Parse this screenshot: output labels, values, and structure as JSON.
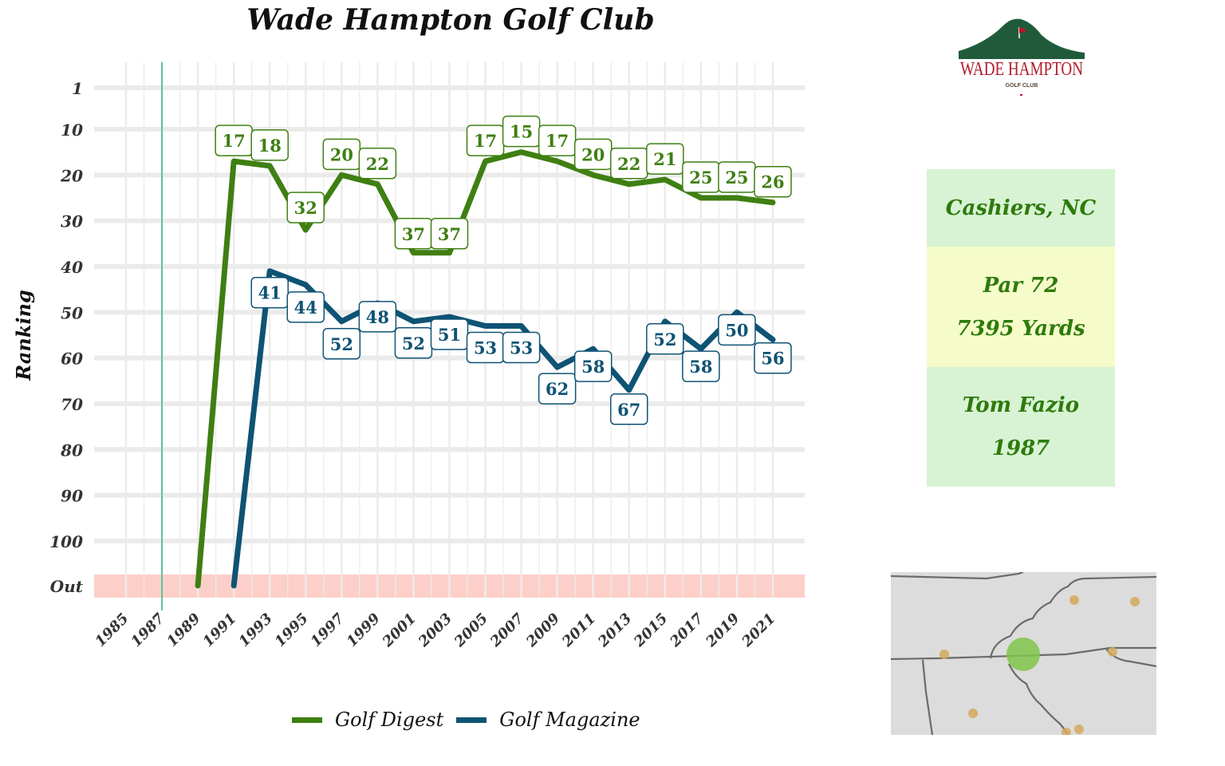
{
  "chart_data": {
    "type": "line",
    "title": "Wade Hampton Golf Club",
    "ylabel": "Ranking",
    "xlabel": "",
    "x_ticks": [
      "1985",
      "1987",
      "1989",
      "1991",
      "1993",
      "1995",
      "1997",
      "1999",
      "2001",
      "2003",
      "2005",
      "2007",
      "2009",
      "2011",
      "2013",
      "2015",
      "2017",
      "2019",
      "2021"
    ],
    "y_ticks": [
      "1",
      "10",
      "20",
      "30",
      "40",
      "50",
      "60",
      "70",
      "80",
      "90",
      "100",
      "Out"
    ],
    "reference_line_year": 1987,
    "out_band_label": "Out",
    "series": [
      {
        "name": "Golf Digest",
        "color": "#3f7f12",
        "points": [
          {
            "x": 1989,
            "y": "Out"
          },
          {
            "x": 1991,
            "y": 17
          },
          {
            "x": 1993,
            "y": 18
          },
          {
            "x": 1995,
            "y": 32
          },
          {
            "x": 1997,
            "y": 20
          },
          {
            "x": 1999,
            "y": 22
          },
          {
            "x": 2001,
            "y": 37
          },
          {
            "x": 2003,
            "y": 37
          },
          {
            "x": 2005,
            "y": 17
          },
          {
            "x": 2007,
            "y": 15
          },
          {
            "x": 2009,
            "y": 17
          },
          {
            "x": 2011,
            "y": 20
          },
          {
            "x": 2013,
            "y": 22
          },
          {
            "x": 2015,
            "y": 21
          },
          {
            "x": 2017,
            "y": 25
          },
          {
            "x": 2019,
            "y": 25
          },
          {
            "x": 2021,
            "y": 26
          }
        ]
      },
      {
        "name": "Golf Magazine",
        "color": "#0f5374",
        "points": [
          {
            "x": 1991,
            "y": "Out"
          },
          {
            "x": 1993,
            "y": 41
          },
          {
            "x": 1995,
            "y": 44
          },
          {
            "x": 1997,
            "y": 52
          },
          {
            "x": 1999,
            "y": 48
          },
          {
            "x": 2001,
            "y": 52
          },
          {
            "x": 2003,
            "y": 51
          },
          {
            "x": 2005,
            "y": 53
          },
          {
            "x": 2007,
            "y": 53
          },
          {
            "x": 2009,
            "y": 62
          },
          {
            "x": 2011,
            "y": 58
          },
          {
            "x": 2013,
            "y": 67
          },
          {
            "x": 2015,
            "y": 52
          },
          {
            "x": 2017,
            "y": 58
          },
          {
            "x": 2019,
            "y": 50
          },
          {
            "x": 2021,
            "y": 56
          }
        ]
      }
    ],
    "grid": true,
    "legend_position": "bottom"
  },
  "logo": {
    "name": "WADE HAMPTON",
    "sub": "GOLF CLUB"
  },
  "info": {
    "location": "Cashiers, NC",
    "par": "Par 72",
    "yards": "7395 Yards",
    "architect": "Tom Fazio",
    "year": "1987"
  },
  "colors": {
    "out_band": "#fccfc9",
    "ref_line": "#5fbf95",
    "grid": "#ebebeb",
    "map_bg": "#dcdcdc",
    "map_highlight": "#7fc44a",
    "map_dots": "#d4a95a"
  }
}
